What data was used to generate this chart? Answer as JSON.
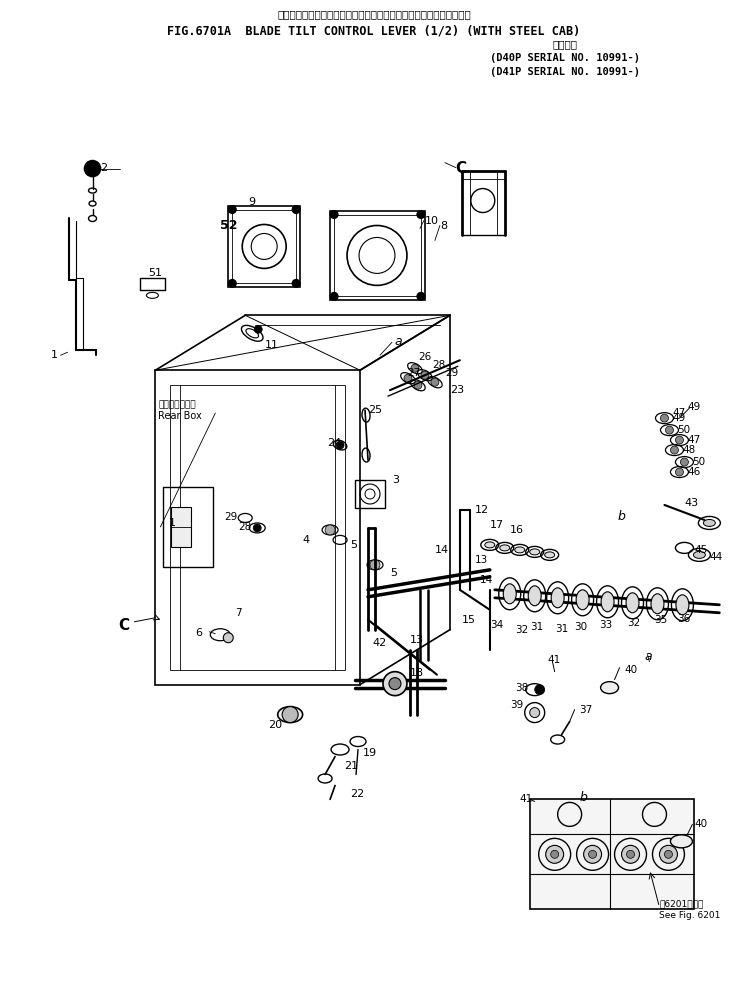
{
  "title_jp_line1": "ブレード　チルト　コントロール　レバー　　　　スチールキャブ付",
  "title_en": "FIG.6701A  BLADE TILT CONTROL LEVER (1/2) (WITH STEEL CAB)",
  "title_jp_line3": "適用号機",
  "title_serial1": "(D40P SERIAL NO. 10991-)",
  "title_serial2": "(D41P SERIAL NO. 10991-)",
  "fig_width": 7.49,
  "fig_height": 9.81,
  "bg_color": "#ffffff",
  "line_color": "#000000"
}
